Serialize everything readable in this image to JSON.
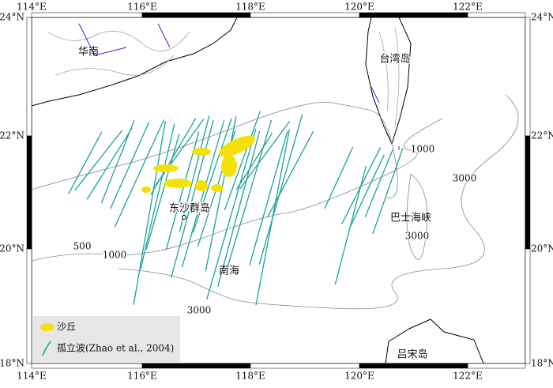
{
  "map": {
    "lon_labels": [
      "114°E",
      "116°E",
      "118°E",
      "120°E",
      "122°E"
    ],
    "lat_labels": [
      "24°N",
      "22°N",
      "20°N",
      "18°N"
    ],
    "places": [
      "华南",
      "台湾岛",
      "东沙群岛",
      "巴士海峡",
      "南海",
      "吕宋岛"
    ],
    "contour_labels": [
      "500",
      "1000",
      "3000",
      "1000",
      "3000",
      "3000"
    ],
    "legend": [
      "沙丘",
      "孤立波(Zhao et al., 2004)"
    ]
  }
}
